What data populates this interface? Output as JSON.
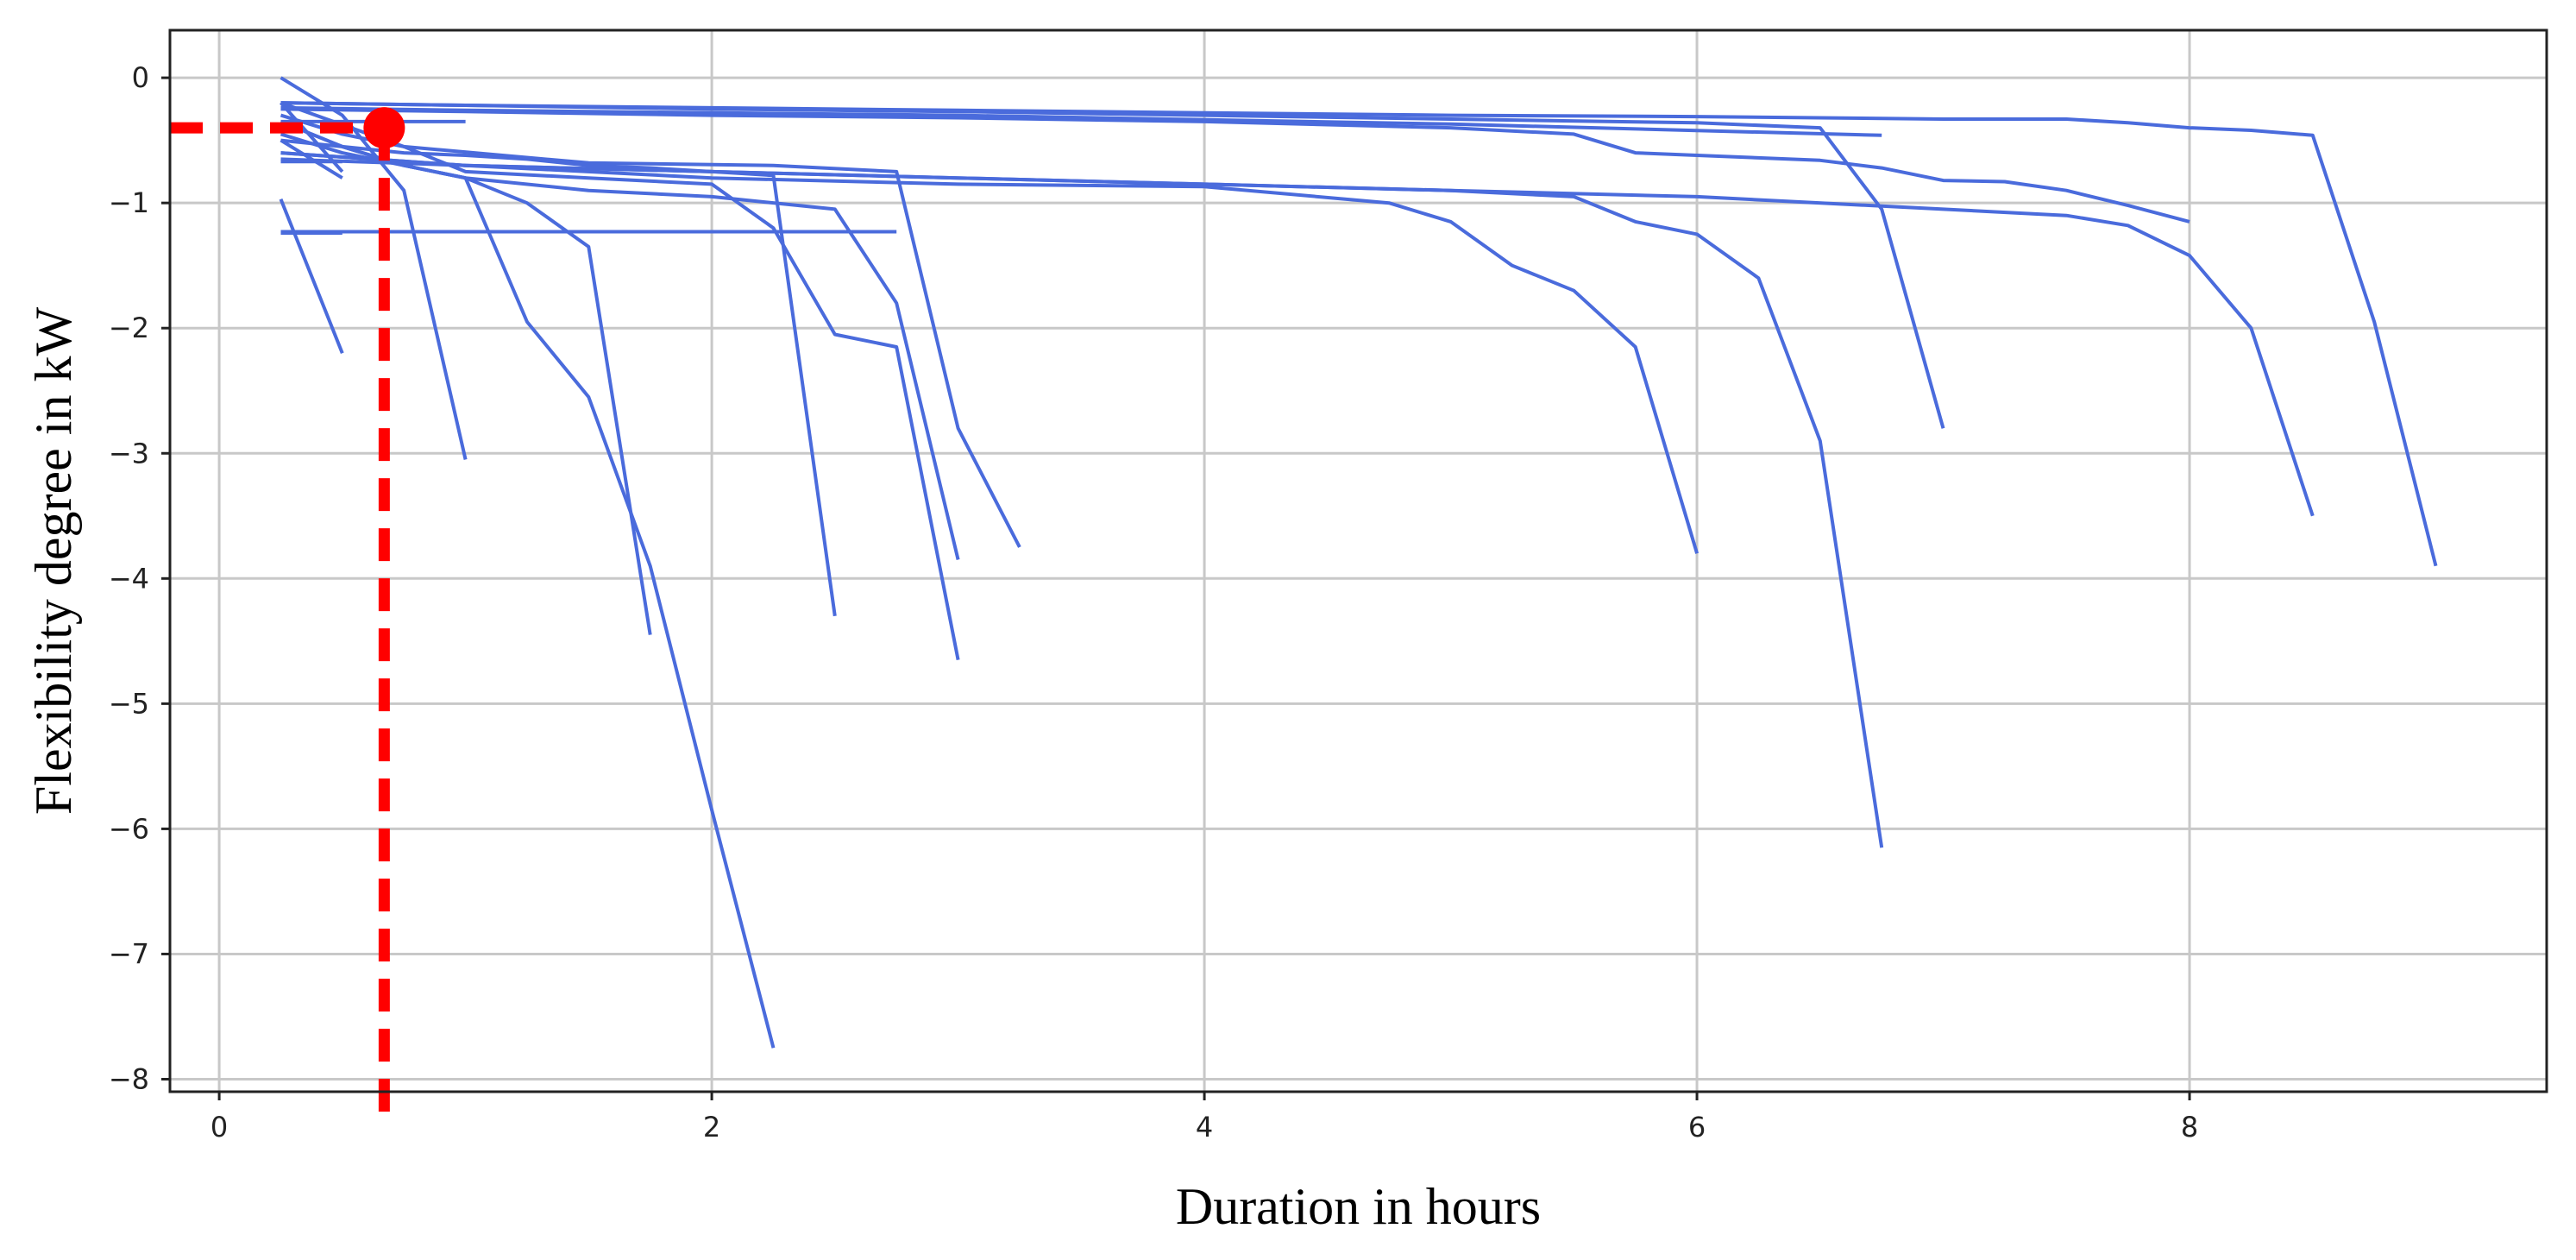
{
  "chart_data": {
    "type": "line",
    "title": "",
    "xlabel": "Duration in hours",
    "ylabel": "Flexibility  degree  in kW",
    "xlim": [
      -0.2,
      9.45
    ],
    "ylim": [
      -8.1,
      0.38
    ],
    "xticks": [
      0,
      2,
      4,
      6,
      8
    ],
    "xtick_labels": [
      "0",
      "2",
      "4",
      "6",
      "8"
    ],
    "yticks": [
      0,
      -1,
      -2,
      -3,
      -4,
      -5,
      -6,
      -7,
      -8
    ],
    "ytick_labels": [
      "0",
      "−1",
      "−2",
      "−3",
      "−4",
      "−5",
      "−6",
      "−7",
      "−8"
    ],
    "grid": true,
    "legend": "none",
    "series_color": "#4a6bdc",
    "highlight_color": "#ff0000",
    "highlight_point": {
      "x": 0.67,
      "y": -0.4
    },
    "series": [
      {
        "x": [
          0.25,
          0.5
        ],
        "y": [
          -0.97,
          -2.2
        ]
      },
      {
        "x": [
          0.25,
          0.5
        ],
        "y": [
          -1.24,
          -1.24
        ]
      },
      {
        "x": [
          0.25,
          0.5,
          0.75,
          1.0
        ],
        "y": [
          0.0,
          -0.3,
          -0.9,
          -3.05
        ]
      },
      {
        "x": [
          0.25,
          0.5,
          0.75,
          1.0,
          1.25,
          1.5,
          1.75
        ],
        "y": [
          -0.35,
          -0.55,
          -0.7,
          -0.8,
          -1.0,
          -1.35,
          -4.45
        ]
      },
      {
        "x": [
          0.25,
          0.5,
          0.75,
          1.0,
          1.25,
          1.5,
          1.75,
          2.0,
          2.25
        ],
        "y": [
          -0.45,
          -0.6,
          -0.7,
          -0.8,
          -1.95,
          -2.55,
          -3.9,
          -5.85,
          -7.75
        ]
      },
      {
        "x": [
          0.25,
          0.5,
          0.75,
          1.0,
          1.25,
          1.5,
          1.75,
          2.0,
          2.25,
          2.5
        ],
        "y": [
          -0.5,
          -0.55,
          -0.6,
          -0.62,
          -0.65,
          -0.7,
          -0.72,
          -0.75,
          -0.78,
          -4.3
        ]
      },
      {
        "x": [
          0.25,
          0.5,
          0.75,
          1.0,
          1.5,
          2.0,
          2.25,
          2.5,
          2.75,
          3.0
        ],
        "y": [
          -0.3,
          -0.45,
          -0.55,
          -0.75,
          -0.8,
          -0.85,
          -1.2,
          -2.05,
          -2.15,
          -4.65
        ]
      },
      {
        "x": [
          0.25,
          0.5,
          0.75,
          1.0,
          1.5,
          2.0,
          2.5,
          2.75,
          3.0
        ],
        "y": [
          -0.35,
          -0.55,
          -0.7,
          -0.8,
          -0.9,
          -0.95,
          -1.05,
          -1.8,
          -3.85
        ]
      },
      {
        "x": [
          0.25,
          0.75,
          1.5,
          2.25,
          2.75,
          3.0,
          3.25
        ],
        "y": [
          -0.2,
          -0.55,
          -0.68,
          -0.7,
          -0.75,
          -2.8,
          -3.75
        ]
      },
      {
        "x": [
          0.25,
          1.0,
          2.0,
          3.0,
          4.0,
          4.75,
          5.0,
          5.25,
          5.5,
          5.75,
          6.0
        ],
        "y": [
          -0.6,
          -0.7,
          -0.8,
          -0.85,
          -0.87,
          -1.0,
          -1.15,
          -1.5,
          -1.7,
          -2.15,
          -3.8
        ]
      },
      {
        "x": [
          0.25,
          1.0,
          2.0,
          3.0,
          4.0,
          5.0,
          5.5,
          5.75,
          6.0,
          6.25,
          6.5,
          6.75
        ],
        "y": [
          -0.65,
          -0.7,
          -0.75,
          -0.8,
          -0.85,
          -0.9,
          -0.95,
          -1.15,
          -1.25,
          -1.6,
          -2.9,
          -6.15
        ]
      },
      {
        "x": [
          0.25,
          1.0,
          2.0,
          3.0,
          4.0,
          5.0,
          6.0,
          6.5,
          6.75,
          7.0
        ],
        "y": [
          -0.2,
          -0.22,
          -0.25,
          -0.27,
          -0.3,
          -0.33,
          -0.36,
          -0.4,
          -1.05,
          -2.8
        ]
      },
      {
        "x": [
          0.25,
          1.0,
          2.0,
          3.0,
          4.0,
          5.0,
          6.0,
          7.0,
          7.5,
          7.75,
          8.0,
          8.25,
          8.5
        ],
        "y": [
          -0.6,
          -0.7,
          -0.75,
          -0.8,
          -0.85,
          -0.9,
          -0.95,
          -1.05,
          -1.1,
          -1.18,
          -1.42,
          -2.0,
          -3.5
        ]
      },
      {
        "x": [
          0.25,
          1.0,
          2.0,
          3.0,
          4.0,
          5.0,
          6.0,
          7.0,
          7.5,
          7.75,
          8.0,
          8.25,
          8.5,
          8.75,
          9.0
        ],
        "y": [
          -0.2,
          -0.22,
          -0.24,
          -0.26,
          -0.28,
          -0.3,
          -0.31,
          -0.33,
          -0.33,
          -0.36,
          -0.4,
          -0.42,
          -0.46,
          -1.95,
          -3.9
        ]
      },
      {
        "x": [
          0.25,
          1.0,
          2.0,
          3.0,
          4.0,
          5.0,
          5.5,
          5.75,
          6.0,
          6.5,
          6.75,
          7.0,
          7.25,
          7.5,
          7.75,
          8.0
        ],
        "y": [
          -0.25,
          -0.27,
          -0.3,
          -0.32,
          -0.35,
          -0.4,
          -0.45,
          -0.6,
          -0.62,
          -0.66,
          -0.72,
          -0.82,
          -0.83,
          -0.9,
          -1.02,
          -1.15
        ]
      },
      {
        "x": [
          0.25,
          1.0,
          3.0,
          5.0,
          6.75
        ],
        "y": [
          -0.24,
          -0.26,
          -0.3,
          -0.37,
          -0.46
        ]
      },
      {
        "x": [
          0.25,
          0.5
        ],
        "y": [
          -0.2,
          -0.75
        ]
      },
      {
        "x": [
          0.25,
          0.5
        ],
        "y": [
          -0.5,
          -0.8
        ]
      },
      {
        "x": [
          0.25,
          0.5
        ],
        "y": [
          -0.67,
          -0.67
        ]
      },
      {
        "x": [
          0.25,
          1.0
        ],
        "y": [
          -0.35,
          -0.35
        ]
      },
      {
        "x": [
          0.25,
          2.75
        ],
        "y": [
          -1.23,
          -1.23
        ]
      }
    ]
  }
}
